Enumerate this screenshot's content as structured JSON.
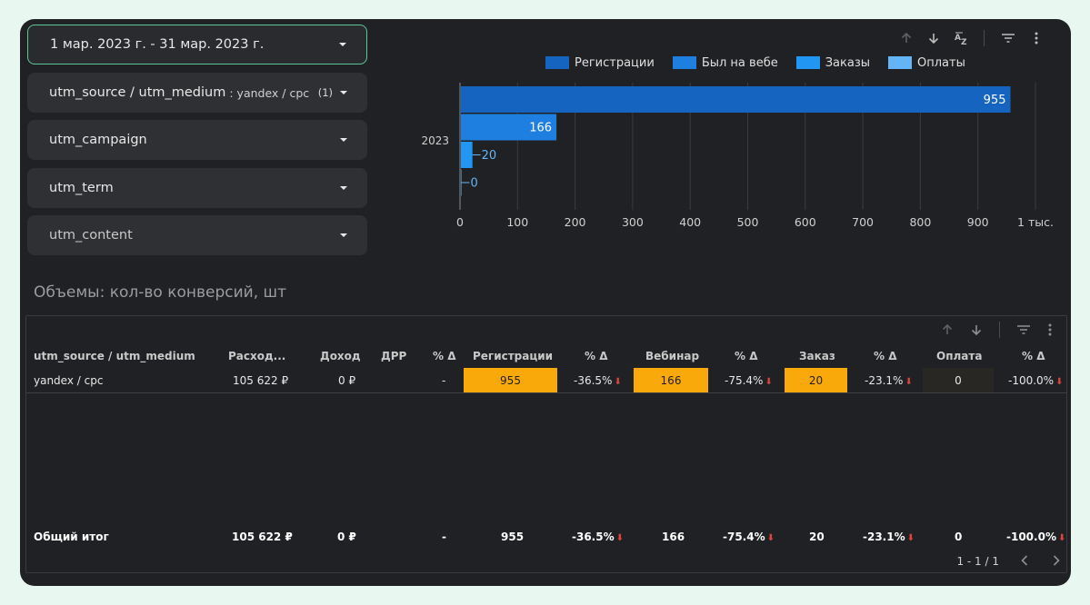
{
  "filters": {
    "date_range": "1 мар. 2023 г. - 31 мар. 2023 г.",
    "source_medium": {
      "label": "utm_source / utm_medium",
      "value": ": yandex / cpc",
      "count": "(1)"
    },
    "campaign": "utm_campaign",
    "term": "utm_term",
    "content": "utm_content"
  },
  "toolbar_icons": [
    "arrow-up-icon",
    "arrow-down-icon",
    "sort-az-icon",
    "filter-icon",
    "more-vert-icon"
  ],
  "colors": {
    "registrations": "#1565c0",
    "webinar": "#1e7fe0",
    "orders": "#2196f3",
    "payments": "#64b5f6",
    "highlight": "#f9a90a",
    "negative": "#e0433b",
    "accent_border": "#5cc995"
  },
  "chart_data": {
    "type": "bar",
    "orientation": "horizontal",
    "categories": [
      "2023"
    ],
    "series": [
      {
        "name": "Регистрации",
        "values": [
          955
        ]
      },
      {
        "name": "Был на вебе",
        "values": [
          166
        ]
      },
      {
        "name": "Заказы",
        "values": [
          20
        ]
      },
      {
        "name": "Оплаты",
        "values": [
          0
        ]
      }
    ],
    "data_labels": [
      "955",
      "166",
      "20",
      "0"
    ],
    "xlim": [
      0,
      1000
    ],
    "x_ticks": [
      "0",
      "100",
      "200",
      "300",
      "400",
      "500",
      "600",
      "700",
      "800",
      "900",
      "1 тыс."
    ],
    "legend": "top",
    "grid": true
  },
  "section_title": "Объемы: кол-во конверсий, шт",
  "table": {
    "headers": [
      "utm_source / utm_medium",
      "Расход...",
      "Доход",
      "ДРР",
      "% Δ",
      "Регистрации",
      "% Δ",
      "Вебинар",
      "% Δ",
      "Заказ",
      "% Δ",
      "Оплата",
      "% Δ"
    ],
    "row": {
      "source": "yandex / cpc",
      "spend": "105 622 ₽",
      "income": "0 ₽",
      "drr": "-",
      "reg": "955",
      "reg_delta": "-36.5%",
      "web": "166",
      "web_delta": "-75.4%",
      "order": "20",
      "order_delta": "-23.1%",
      "pay": "0",
      "pay_delta": "-100.0%"
    },
    "footer": {
      "label": "Общий итог",
      "spend": "105 622 ₽",
      "income": "0 ₽",
      "drr": "-",
      "reg": "955",
      "reg_delta": "-36.5%",
      "web": "166",
      "web_delta": "-75.4%",
      "order": "20",
      "order_delta": "-23.1%",
      "pay": "0",
      "pay_delta": "-100.0%"
    },
    "pagination": "1 - 1 / 1"
  }
}
